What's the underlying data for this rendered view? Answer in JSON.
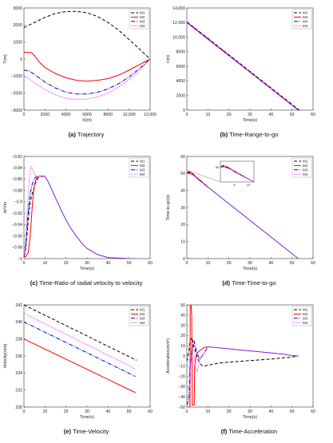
{
  "colors": {
    "M1": "#000000",
    "M2": "#ff0000",
    "M3": "#0000cc",
    "M4": "#ff33ff"
  },
  "charts": [
    {
      "id": "a",
      "type": "line",
      "caption_letter": "(a)",
      "caption_text": "Trajectory",
      "xlabel": "X(m)",
      "ylabel": "Y(m)",
      "xlim": [
        0,
        12000
      ],
      "ylim": [
        -3000,
        3000
      ],
      "xticks": [
        0,
        2000,
        4000,
        6000,
        8000,
        10000,
        12000
      ],
      "xtick_labels": [
        "0",
        "2000",
        "4000",
        "6000",
        "8000",
        "10,000",
        "12,000"
      ],
      "yticks": [
        -3000,
        -2000,
        -1000,
        0,
        1000,
        2000,
        3000
      ],
      "ytick_labels": [
        "−3000",
        "−2000",
        "−1000",
        "0",
        "1000",
        "2000",
        "3000"
      ],
      "legend": [
        "M1",
        "M2",
        "M3",
        "M4"
      ],
      "series": [
        {
          "name": "M1",
          "dash": "4,2.5",
          "x": [
            0,
            1000,
            2000,
            3000,
            4000,
            5000,
            6000,
            7000,
            8000,
            9000,
            10000,
            11000,
            12000
          ],
          "y": [
            1850,
            2150,
            2450,
            2680,
            2790,
            2800,
            2720,
            2500,
            2150,
            1700,
            1150,
            580,
            0
          ]
        },
        {
          "name": "M2",
          "dash": "",
          "x": [
            0,
            700,
            1000,
            1500,
            2000,
            3000,
            4000,
            5000,
            6000,
            7000,
            8000,
            9000,
            10000,
            11000,
            12000
          ],
          "y": [
            400,
            380,
            200,
            -200,
            -500,
            -850,
            -1100,
            -1250,
            -1300,
            -1250,
            -1150,
            -950,
            -650,
            -320,
            0
          ]
        },
        {
          "name": "M3",
          "dash": "5,1.5,1,1.5",
          "x": [
            0,
            500,
            1000,
            2000,
            3000,
            4000,
            5000,
            6000,
            7000,
            8000,
            9000,
            10000,
            11000,
            12000
          ],
          "y": [
            -650,
            -700,
            -900,
            -1350,
            -1700,
            -1950,
            -2050,
            -2050,
            -1950,
            -1750,
            -1450,
            -1050,
            -550,
            0
          ]
        },
        {
          "name": "M4",
          "dash": "1.2,1.2",
          "x": [
            0,
            500,
            1000,
            2000,
            3000,
            4000,
            5000,
            6000,
            7000,
            8000,
            9000,
            10000,
            11000,
            12000
          ],
          "y": [
            -1000,
            -1150,
            -1400,
            -1800,
            -2100,
            -2300,
            -2380,
            -2350,
            -2220,
            -1980,
            -1650,
            -1200,
            -650,
            0
          ]
        }
      ]
    },
    {
      "id": "b",
      "type": "line",
      "caption_letter": "(b)",
      "caption_text": "Time-Range-to-go",
      "xlabel": "Time(s)",
      "ylabel": "r(m)",
      "xlim": [
        0,
        60
      ],
      "ylim": [
        0,
        14000
      ],
      "xticks": [
        0,
        10,
        20,
        30,
        40,
        50,
        60
      ],
      "xtick_labels": [
        "0",
        "10",
        "20",
        "30",
        "40",
        "50",
        "60"
      ],
      "yticks": [
        0,
        2000,
        4000,
        6000,
        8000,
        10000,
        12000,
        14000
      ],
      "ytick_labels": [
        "0",
        "2000",
        "4000",
        "6000",
        "8000",
        "10,000",
        "12,000",
        "14,000"
      ],
      "legend": [
        "M1",
        "M2",
        "M3",
        "M4"
      ],
      "series": [
        {
          "name": "M1",
          "dash": "4,2.5",
          "x": [
            0,
            53.5
          ],
          "y": [
            12100,
            0
          ]
        },
        {
          "name": "M2",
          "dash": "",
          "x": [
            0,
            53
          ],
          "y": [
            12000,
            0
          ]
        },
        {
          "name": "M3",
          "dash": "5,1.5,1,1.5",
          "x": [
            0,
            53
          ],
          "y": [
            12050,
            0
          ]
        },
        {
          "name": "M4",
          "dash": "1.2,1.2",
          "x": [
            0,
            53
          ],
          "y": [
            11950,
            0
          ]
        }
      ]
    },
    {
      "id": "c",
      "type": "line",
      "caption_letter": "(c)",
      "caption_text": "Time-Ratio of radial velocity to velocity",
      "xlabel": "Time(s)",
      "ylabel": "dr/Vm",
      "xlim": [
        0,
        60
      ],
      "ylim": [
        -1,
        -0.82
      ],
      "xticks": [
        0,
        10,
        20,
        30,
        40,
        50,
        60
      ],
      "xtick_labels": [
        "0",
        "10",
        "20",
        "30",
        "40",
        "50",
        "60"
      ],
      "yticks": [
        -1,
        -0.98,
        -0.96,
        -0.94,
        -0.92,
        -0.9,
        -0.88,
        -0.86,
        -0.84,
        -0.82
      ],
      "ytick_labels": [
        "−1",
        "−0.98",
        "−0.96",
        "−0.94",
        "−0.92",
        "−0.9",
        "−0.88",
        "−0.86",
        "−0.84",
        "−0.82"
      ],
      "legend": [
        "M1",
        "M2",
        "M3",
        "M4"
      ],
      "series": [
        {
          "name": "M1",
          "dash": "4,2.5",
          "x": [
            0,
            0.5,
            1,
            1.5,
            2,
            2.5,
            3,
            4,
            5,
            6,
            7,
            8,
            9,
            10
          ],
          "y": [
            -0.996,
            -0.99,
            -0.975,
            -0.955,
            -0.935,
            -0.915,
            -0.9,
            -0.885,
            -0.872,
            -0.862,
            -0.857,
            -0.855,
            -0.855,
            -0.855
          ]
        },
        {
          "name": "M2",
          "dash": "",
          "x": [
            0,
            1,
            2,
            3,
            4,
            5,
            6,
            7,
            8,
            9,
            10
          ],
          "y": [
            -0.997,
            -0.996,
            -0.99,
            -0.96,
            -0.905,
            -0.87,
            -0.858,
            -0.855,
            -0.855,
            -0.855,
            -0.855
          ]
        },
        {
          "name": "M3",
          "dash": "5,1.5,1,1.5",
          "x": [
            0,
            0.5,
            1,
            1.5,
            2,
            2.5,
            3,
            4,
            5,
            6,
            7,
            8,
            9,
            10
          ],
          "y": [
            -0.997,
            -0.99,
            -0.97,
            -0.945,
            -0.92,
            -0.9,
            -0.885,
            -0.868,
            -0.859,
            -0.855,
            -0.855,
            -0.855,
            -0.855,
            -0.855
          ]
        },
        {
          "name": "M4",
          "dash": "1.2,1.2",
          "x": [
            0,
            0.5,
            1,
            1.5,
            2,
            2.5,
            3,
            3.5,
            4,
            5,
            6,
            7,
            8,
            9,
            10
          ],
          "y": [
            -0.997,
            -0.985,
            -0.955,
            -0.92,
            -0.89,
            -0.862,
            -0.845,
            -0.838,
            -0.842,
            -0.852,
            -0.855,
            -0.855,
            -0.855,
            -0.855,
            -0.855
          ]
        },
        {
          "name": "common",
          "dash": "",
          "color": "#7a1fd6",
          "x": [
            10,
            12,
            15,
            18,
            20,
            22,
            25,
            28,
            30,
            35,
            40,
            45,
            50,
            53
          ],
          "y": [
            -0.855,
            -0.868,
            -0.893,
            -0.917,
            -0.932,
            -0.945,
            -0.961,
            -0.975,
            -0.982,
            -0.993,
            -0.998,
            -0.999,
            -1.0,
            -1.0
          ]
        }
      ]
    },
    {
      "id": "d",
      "type": "line",
      "caption_letter": "(d)",
      "caption_text": "Time-Time-to-go",
      "xlabel": "Time(s)",
      "ylabel": "Time-to-go(s)",
      "xlim": [
        0,
        60
      ],
      "ylim": [
        0,
        60
      ],
      "xticks": [
        0,
        10,
        20,
        30,
        40,
        50,
        60
      ],
      "xtick_labels": [
        "0",
        "10",
        "20",
        "30",
        "40",
        "50",
        "60"
      ],
      "yticks": [
        0,
        10,
        20,
        30,
        40,
        50,
        60
      ],
      "ytick_labels": [
        "0",
        "10",
        "20",
        "30",
        "40",
        "50",
        "60"
      ],
      "legend": [
        "M1",
        "M2",
        "M3",
        "M4"
      ],
      "inset": {
        "xticks": [
          5,
          10
        ],
        "yticks": [
          50
        ],
        "xlim": [
          0,
          12
        ],
        "ylim": [
          40,
          54
        ]
      },
      "series": [
        {
          "name": "M1",
          "dash": "4,2.5",
          "x": [
            0,
            1,
            3,
            5,
            8,
            10
          ],
          "y": [
            50.5,
            50.8,
            49.5,
            47.2,
            44,
            42
          ]
        },
        {
          "name": "M2",
          "dash": "",
          "x": [
            0,
            1,
            3,
            5,
            8,
            10
          ],
          "y": [
            50.5,
            51.2,
            49.8,
            47,
            44,
            42
          ]
        },
        {
          "name": "M3",
          "dash": "5,1.5,1,1.5",
          "x": [
            0,
            1,
            3,
            5,
            8,
            10
          ],
          "y": [
            50,
            50.3,
            49.2,
            47.3,
            44.2,
            42
          ]
        },
        {
          "name": "M4",
          "dash": "1.2,1.2",
          "x": [
            0,
            1,
            3,
            5,
            8,
            10
          ],
          "y": [
            50.2,
            50,
            49,
            47.6,
            44.4,
            42
          ]
        },
        {
          "name": "common",
          "dash": "",
          "color": "#7a1fd6",
          "x": [
            10,
            53
          ],
          "y": [
            42,
            0
          ]
        }
      ]
    },
    {
      "id": "e",
      "type": "line",
      "caption_letter": "(e)",
      "caption_text": "Time-Velocity",
      "xlabel": "Time(s)",
      "ylabel": "Velocity(m/s)",
      "xlim": [
        0,
        60
      ],
      "ylim": [
        230,
        242
      ],
      "xticks": [
        0,
        10,
        20,
        30,
        40,
        50,
        60
      ],
      "xtick_labels": [
        "0",
        "10",
        "20",
        "30",
        "40",
        "50",
        "60"
      ],
      "yticks": [
        230,
        232,
        234,
        236,
        238,
        240,
        242
      ],
      "ytick_labels": [
        "230",
        "232",
        "234",
        "236",
        "238",
        "240",
        "242"
      ],
      "legend": [
        "M1",
        "M2",
        "M3",
        "M4"
      ],
      "series": [
        {
          "name": "M1",
          "dash": "4,2.5",
          "x": [
            0,
            53.5
          ],
          "y": [
            242,
            235.5
          ]
        },
        {
          "name": "M2",
          "dash": "",
          "x": [
            0,
            53
          ],
          "y": [
            238,
            231.7
          ]
        },
        {
          "name": "M3",
          "dash": "5,1.5,1,1.5",
          "x": [
            0,
            53
          ],
          "y": [
            240,
            233.6
          ]
        },
        {
          "name": "M4",
          "dash": "1.2,1.2",
          "x": [
            0,
            53
          ],
          "y": [
            241,
            234.5
          ]
        }
      ]
    },
    {
      "id": "f",
      "type": "line",
      "caption_letter": "(f)",
      "caption_text": "Time-Acceleration",
      "xlabel": "Time(s)",
      "ylabel": "Acceleration(m/s²)",
      "xlim": [
        0,
        60
      ],
      "ylim": [
        -50,
        50
      ],
      "xticks": [
        0,
        10,
        20,
        30,
        40,
        50,
        60
      ],
      "xtick_labels": [
        "0",
        "10",
        "20",
        "30",
        "40",
        "50",
        "60"
      ],
      "yticks": [
        -50,
        -40,
        -30,
        -20,
        -10,
        0,
        10,
        20,
        30,
        40,
        50
      ],
      "ytick_labels": [
        "−50",
        "−40",
        "−30",
        "−20",
        "−10",
        "0",
        "10",
        "20",
        "30",
        "40",
        "50"
      ],
      "legend": [
        "M1",
        "M2",
        "M3",
        "M4"
      ],
      "series": [
        {
          "name": "M1",
          "dash": "4,2.5",
          "x": [
            0,
            1,
            1.5,
            2.5,
            3,
            4,
            5,
            6,
            7,
            8,
            10,
            15,
            20,
            30,
            40,
            50,
            53
          ],
          "y": [
            -5,
            5,
            15,
            18,
            12,
            5,
            -2,
            -6,
            -9,
            -10,
            -9,
            -7,
            -6,
            -4.5,
            -3,
            -1,
            0
          ]
        },
        {
          "name": "M2",
          "dash": "",
          "x": [
            0,
            1.5,
            1.6,
            2,
            2.3,
            2.6,
            3.5,
            3.7,
            4.5,
            6,
            8,
            10
          ],
          "y": [
            -50,
            -50,
            50,
            50,
            40,
            -48,
            -48,
            -10,
            2,
            5,
            8,
            9
          ]
        },
        {
          "name": "M3",
          "dash": "5,1.5,1,1.5",
          "x": [
            0,
            1,
            1.5,
            2.5,
            3.5,
            4.5,
            6,
            8,
            10
          ],
          "y": [
            -48,
            -40,
            -10,
            5,
            15,
            5,
            -3,
            2,
            9
          ]
        },
        {
          "name": "M4",
          "dash": "1.2,1.2",
          "x": [
            0,
            1,
            1.5,
            2,
            2.5,
            3,
            4,
            5,
            6,
            8,
            10
          ],
          "y": [
            -50,
            -50,
            -30,
            5,
            12,
            7,
            -10,
            -15,
            -5,
            3,
            9
          ]
        },
        {
          "name": "common",
          "dash": "",
          "color": "#7a1fd6",
          "x": [
            10,
            15,
            20,
            25,
            30,
            35,
            40,
            45,
            50,
            53
          ],
          "y": [
            9,
            8,
            7,
            6,
            5,
            4,
            3,
            2,
            0.5,
            0
          ]
        }
      ]
    }
  ]
}
